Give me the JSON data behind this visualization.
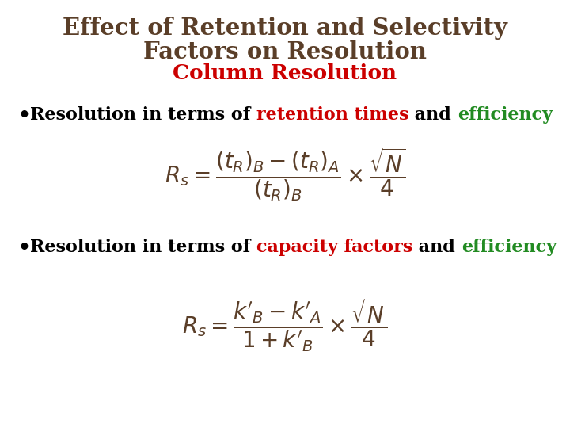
{
  "title_line1": "Effect of Retention and Selectivity",
  "title_line2": "Factors on Resolution",
  "subtitle": "Column Resolution",
  "title_color": "#5a3e28",
  "subtitle_color": "#cc0000",
  "background_color": "#ffffff",
  "bullet1_parts": [
    {
      "text": "Resolution in terms of ",
      "color": "#000000"
    },
    {
      "text": "retention times",
      "color": "#cc0000"
    },
    {
      "text": " and ",
      "color": "#000000"
    },
    {
      "text": "efficiency",
      "color": "#228b22"
    }
  ],
  "bullet2_parts": [
    {
      "text": "Resolution in terms of ",
      "color": "#000000"
    },
    {
      "text": "capacity factors",
      "color": "#cc0000"
    },
    {
      "text": " and ",
      "color": "#000000"
    },
    {
      "text": "efficiency",
      "color": "#228b22"
    }
  ],
  "eq_color": "#5a3e28",
  "eq1_fontsize": 20,
  "eq2_fontsize": 20,
  "title_fontsize": 21,
  "subtitle_fontsize": 19,
  "bullet_fontsize": 16
}
